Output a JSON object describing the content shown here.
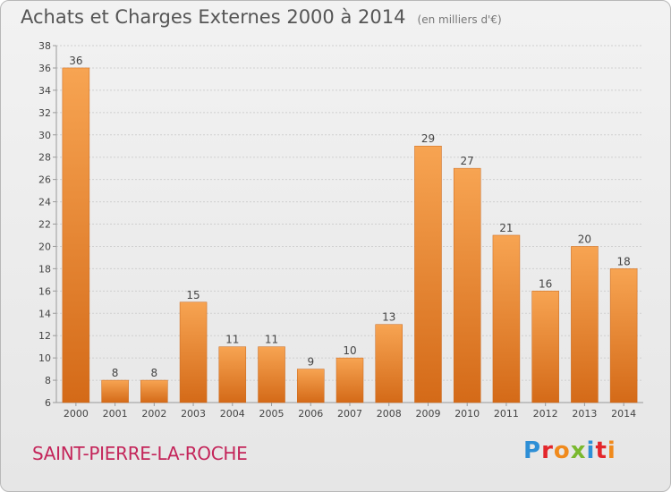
{
  "header": {
    "title": "Achats et Charges Externes 2000 à 2014",
    "subtitle": "(en milliers d'€)"
  },
  "footer": {
    "location": "SAINT-PIERRE-LA-ROCHE",
    "logo_text": "Proxiti"
  },
  "colors": {
    "bar_light": "#f7a452",
    "bar_dark": "#d46a18",
    "logo": [
      "#2e8fd6",
      "#e3262b",
      "#f08a1c",
      "#7ab92f",
      "#2e8fd6",
      "#e3262b",
      "#f08a1c"
    ]
  },
  "chart_data": {
    "type": "bar",
    "title": "Achats et Charges Externes 2000 à 2014",
    "subtitle": "(en milliers d'€)",
    "categories": [
      "2000",
      "2001",
      "2002",
      "2003",
      "2004",
      "2005",
      "2006",
      "2007",
      "2008",
      "2009",
      "2010",
      "2011",
      "2012",
      "2013",
      "2014"
    ],
    "values": [
      36,
      8,
      8,
      15,
      11,
      11,
      9,
      10,
      13,
      29,
      27,
      21,
      16,
      20,
      18
    ],
    "ylim": [
      6,
      38
    ],
    "yticks": [
      6,
      8,
      10,
      12,
      14,
      16,
      18,
      20,
      22,
      24,
      26,
      28,
      30,
      32,
      34,
      36,
      38
    ],
    "grid": true
  }
}
